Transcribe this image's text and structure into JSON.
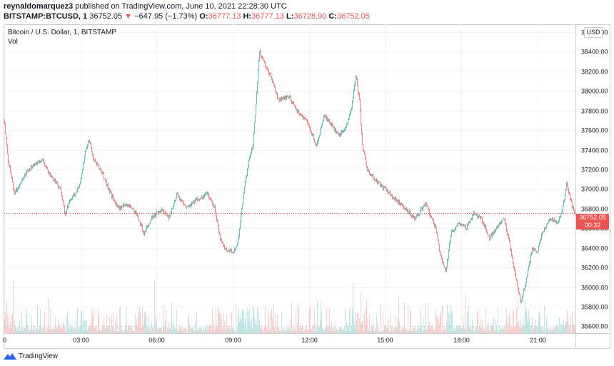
{
  "header": {
    "publisher": "reynaldomarquez3",
    "published_text": "published on TradingView.com, June 10, 2021 22:28:30 UTC",
    "symbol": "BITSTAMP:BTCUSD, 1",
    "last": "36752.05",
    "change_arrow": "▼",
    "change": "−647.95 (−1.73%)",
    "o_label": "O:",
    "o": "36777.13",
    "h_label": "H:",
    "h": "36777.13",
    "l_label": "L:",
    "l": "36728.90",
    "c_label": "C:",
    "c": "36752.05"
  },
  "legend": {
    "title": "Bitcoin / U.S. Dollar, 1, BITSTAMP",
    "volume": "Vol"
  },
  "currency": "USD",
  "price_tag": {
    "price": "36752.05",
    "countdown": "00:32"
  },
  "footer": {
    "brand": "TradingView",
    "icon": "tradingview-logo-icon"
  },
  "colors": {
    "up": "#26a69a",
    "down": "#ef5350",
    "grid": "#f0f3fa",
    "axis_text": "#131722"
  },
  "chart_data": {
    "type": "candlestick",
    "title": "Bitcoin / U.S. Dollar, 1, BITSTAMP",
    "y_ticks": [
      "38600.00",
      "38400.00",
      "38200.00",
      "38000.00",
      "37800.00",
      "37600.00",
      "37400.00",
      "37200.00",
      "37000.00",
      "36800.00",
      "36600.00",
      "36400.00",
      "36200.00",
      "36000.00",
      "35800.00",
      "35600.00"
    ],
    "x_ticks": [
      "0",
      "03:00",
      "06:00",
      "09:00",
      "12:00",
      "15:00",
      "18:00",
      "21:00"
    ],
    "ylim": [
      35530,
      38680
    ],
    "x_hours": [
      0,
      22.5
    ],
    "last_price": 36752.05,
    "path": [
      [
        0,
        37700
      ],
      [
        0.15,
        37300
      ],
      [
        0.4,
        36950
      ],
      [
        0.8,
        37150
      ],
      [
        1.2,
        37250
      ],
      [
        1.5,
        37300
      ],
      [
        1.8,
        37150
      ],
      [
        2.2,
        37000
      ],
      [
        2.4,
        36750
      ],
      [
        2.6,
        36900
      ],
      [
        2.8,
        36950
      ],
      [
        3.0,
        37050
      ],
      [
        3.2,
        37400
      ],
      [
        3.35,
        37500
      ],
      [
        3.5,
        37300
      ],
      [
        3.8,
        37200
      ],
      [
        4.2,
        36950
      ],
      [
        4.5,
        36800
      ],
      [
        4.8,
        36850
      ],
      [
        5.2,
        36750
      ],
      [
        5.5,
        36550
      ],
      [
        5.8,
        36700
      ],
      [
        6.2,
        36800
      ],
      [
        6.5,
        36700
      ],
      [
        6.8,
        36950
      ],
      [
        7.2,
        36800
      ],
      [
        7.6,
        36900
      ],
      [
        8.0,
        36950
      ],
      [
        8.3,
        36800
      ],
      [
        8.5,
        36500
      ],
      [
        8.7,
        36400
      ],
      [
        9.0,
        36350
      ],
      [
        9.2,
        36450
      ],
      [
        9.4,
        36900
      ],
      [
        9.6,
        37250
      ],
      [
        9.8,
        37450
      ],
      [
        9.95,
        38000
      ],
      [
        10.05,
        38420
      ],
      [
        10.2,
        38300
      ],
      [
        10.5,
        38150
      ],
      [
        10.8,
        37900
      ],
      [
        11.2,
        37950
      ],
      [
        11.5,
        37800
      ],
      [
        11.9,
        37700
      ],
      [
        12.3,
        37450
      ],
      [
        12.6,
        37750
      ],
      [
        12.9,
        37650
      ],
      [
        13.2,
        37550
      ],
      [
        13.5,
        37650
      ],
      [
        13.7,
        37850
      ],
      [
        13.85,
        38150
      ],
      [
        14.0,
        37900
      ],
      [
        14.1,
        37450
      ],
      [
        14.3,
        37200
      ],
      [
        14.6,
        37100
      ],
      [
        15.0,
        37000
      ],
      [
        15.4,
        36900
      ],
      [
        15.8,
        36800
      ],
      [
        16.2,
        36700
      ],
      [
        16.6,
        36850
      ],
      [
        17.0,
        36600
      ],
      [
        17.2,
        36300
      ],
      [
        17.4,
        36150
      ],
      [
        17.6,
        36550
      ],
      [
        17.9,
        36650
      ],
      [
        18.2,
        36600
      ],
      [
        18.5,
        36750
      ],
      [
        18.8,
        36700
      ],
      [
        19.1,
        36500
      ],
      [
        19.4,
        36600
      ],
      [
        19.7,
        36700
      ],
      [
        19.9,
        36450
      ],
      [
        20.1,
        36150
      ],
      [
        20.35,
        35850
      ],
      [
        20.55,
        36050
      ],
      [
        20.8,
        36400
      ],
      [
        21.0,
        36350
      ],
      [
        21.2,
        36550
      ],
      [
        21.5,
        36700
      ],
      [
        21.8,
        36650
      ],
      [
        22.0,
        36800
      ],
      [
        22.15,
        37050
      ],
      [
        22.3,
        36900
      ],
      [
        22.45,
        36752
      ]
    ]
  }
}
